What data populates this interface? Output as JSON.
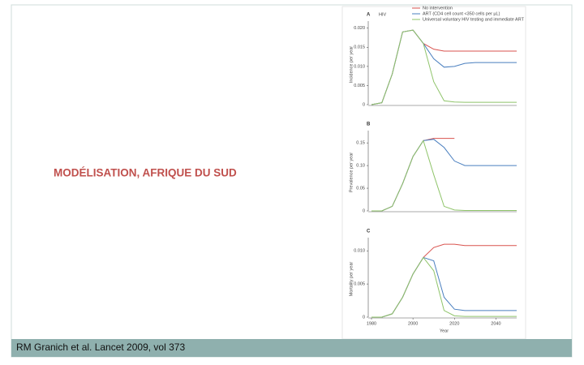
{
  "slide": {
    "title": "MODÉLISATION, AFRIQUE DU SUD",
    "caption": "RM Granich et al. Lancet 2009, vol 373"
  },
  "chart_data": [
    {
      "type": "line",
      "label": "A",
      "title": "HIV",
      "ylabel": "Incidence per year",
      "x": [
        1980,
        1985,
        1990,
        1995,
        2000,
        2005,
        2010,
        2015,
        2020,
        2025,
        2030,
        2035,
        2040,
        2045,
        2050
      ],
      "xlim": [
        1980,
        2050
      ],
      "ylim": [
        0,
        0.021
      ],
      "yticks": [
        0,
        0.005,
        {
          "value": 0.01,
          "label": "0.010"
        },
        0.015,
        {
          "value": 0.02,
          "label": "0.020"
        }
      ],
      "series": [
        {
          "name": "No intervention",
          "color": "#d9534f",
          "values": [
            0,
            0.0005,
            0.008,
            0.019,
            0.0195,
            0.016,
            0.0145,
            0.014,
            0.014,
            0.014,
            0.014,
            0.014,
            0.014,
            0.014,
            0.014
          ]
        },
        {
          "name": "ART (CD4 cell count <350 cells per µL)",
          "color": "#4a7fbf",
          "values": [
            0,
            0.0005,
            0.008,
            0.019,
            0.0195,
            0.016,
            0.012,
            0.0098,
            0.01,
            0.0108,
            0.011,
            0.011,
            0.011,
            0.011,
            0.011
          ]
        },
        {
          "name": "Universal voluntary HIV testing and immediate ART",
          "color": "#8fc46a",
          "values": [
            0,
            0.0005,
            0.008,
            0.019,
            0.0195,
            0.016,
            0.006,
            0.001,
            0.0007,
            0.0006,
            0.0006,
            0.0006,
            0.0006,
            0.0006,
            0.0006
          ]
        }
      ]
    },
    {
      "type": "line",
      "label": "B",
      "ylabel": "Prevalence per year",
      "x": [
        1980,
        1985,
        1990,
        1995,
        2000,
        2005,
        2010,
        2015,
        2020,
        2025,
        2030,
        2035,
        2040,
        2045,
        2050
      ],
      "xlim": [
        1980,
        2050
      ],
      "ylim": [
        0,
        0.17
      ],
      "yticks": [
        0,
        0.05,
        {
          "value": 0.1,
          "label": "0.10"
        },
        0.15
      ],
      "series": [
        {
          "color": "#d9534f",
          "values": [
            0,
            0,
            0.01,
            0.06,
            0.12,
            0.155,
            0.16,
            0.16,
            0.16,
            null,
            null,
            null,
            null,
            null,
            null
          ]
        },
        {
          "color": "#4a7fbf",
          "values": [
            0,
            0,
            0.01,
            0.06,
            0.12,
            0.155,
            0.158,
            0.14,
            0.11,
            0.1,
            0.1,
            0.1,
            0.1,
            0.1,
            0.1
          ]
        },
        {
          "color": "#8fc46a",
          "values": [
            0,
            0,
            0.01,
            0.06,
            0.12,
            0.155,
            0.08,
            0.01,
            0.002,
            0.001,
            0.001,
            0.001,
            0.001,
            0.001,
            0.001
          ]
        }
      ]
    },
    {
      "type": "line",
      "label": "C",
      "ylabel": "Mortality per year",
      "xlabel": "Year",
      "x": [
        1980,
        1985,
        1990,
        1995,
        2000,
        2005,
        2010,
        2015,
        2020,
        2025,
        2030,
        2035,
        2040,
        2045,
        2050
      ],
      "xlim": [
        1980,
        2050
      ],
      "ylim": [
        0,
        0.0115
      ],
      "xticks": [
        1980,
        2000,
        2020,
        2040
      ],
      "yticks": [
        0,
        0.005,
        {
          "value": 0.01,
          "label": "0.010"
        }
      ],
      "series": [
        {
          "color": "#d9534f",
          "values": [
            0,
            0,
            0.0005,
            0.003,
            0.0065,
            0.009,
            0.0105,
            0.011,
            0.011,
            0.0108,
            0.0108,
            0.0108,
            0.0108,
            0.0108,
            0.0108
          ]
        },
        {
          "color": "#4a7fbf",
          "values": [
            0,
            0,
            0.0005,
            0.003,
            0.0065,
            0.009,
            0.0085,
            0.003,
            0.0012,
            0.001,
            0.001,
            0.001,
            0.001,
            0.001,
            0.001
          ]
        },
        {
          "color": "#8fc46a",
          "values": [
            0,
            0,
            0.0005,
            0.003,
            0.0065,
            0.009,
            0.007,
            0.001,
            0.0002,
            0.0001,
            0.0001,
            0.0001,
            0.0001,
            0.0001,
            0.0001
          ]
        }
      ]
    }
  ]
}
